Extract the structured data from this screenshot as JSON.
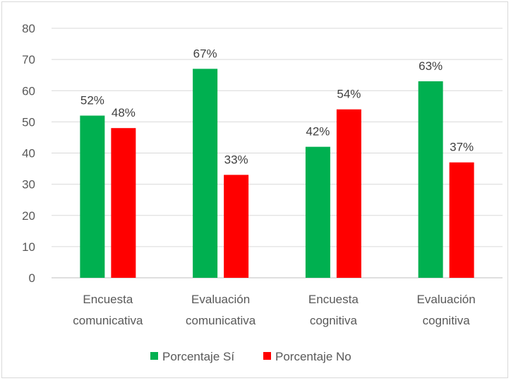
{
  "chart_data": {
    "type": "bar",
    "title": "",
    "xlabel": "",
    "ylabel": "",
    "ylim": [
      0,
      80
    ],
    "y_ticks": [
      0,
      10,
      20,
      30,
      40,
      50,
      60,
      70,
      80
    ],
    "grid": true,
    "legend_position": "bottom",
    "categories": [
      [
        "Encuesta",
        "comunicativa"
      ],
      [
        "Evaluación",
        "comunicativa"
      ],
      [
        "Encuesta",
        "cognitiva"
      ],
      [
        "Evaluación",
        "cognitiva"
      ]
    ],
    "series": [
      {
        "name": "Porcentaje Sí",
        "color": "#00b050",
        "values": [
          52,
          67,
          42,
          63
        ],
        "labels": [
          "52%",
          "67%",
          "42%",
          "63%"
        ]
      },
      {
        "name": "Porcentaje No",
        "color": "#ff0000",
        "values": [
          48,
          33,
          54,
          37
        ],
        "labels": [
          "48%",
          "33%",
          "54%",
          "37%"
        ]
      }
    ]
  }
}
